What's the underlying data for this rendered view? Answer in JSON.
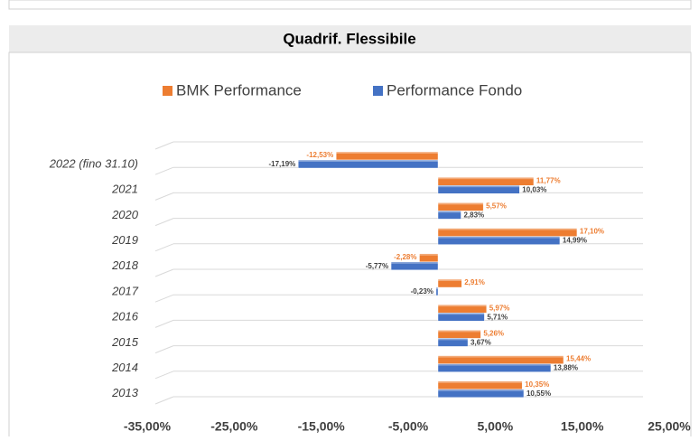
{
  "chart_data": {
    "type": "bar",
    "orientation": "horizontal",
    "title": "Quadrif. Flessibile",
    "categories": [
      "2022 (fino 31.10)",
      "2021",
      "2020",
      "2019",
      "2018",
      "2017",
      "2016",
      "2015",
      "2014",
      "2013"
    ],
    "series": [
      {
        "name": "BMK Performance",
        "color": "#ed7d31",
        "values": [
          -12.53,
          11.77,
          5.57,
          17.1,
          -2.28,
          2.91,
          5.97,
          5.26,
          15.44,
          10.35
        ],
        "value_labels": [
          "-12,53%",
          "11,77%",
          "5,57%",
          "17,10%",
          "-2,28%",
          "2,91%",
          "5,97%",
          "5,26%",
          "15,44%",
          "10,35%"
        ]
      },
      {
        "name": "Performance Fondo",
        "color": "#4472c4",
        "values": [
          -17.19,
          10.03,
          2.83,
          14.99,
          -5.77,
          -0.23,
          5.71,
          3.67,
          13.88,
          10.55
        ],
        "value_labels": [
          "-17,19%",
          "10,03%",
          "2,83%",
          "14,99%",
          "-5,77%",
          "-0,23%",
          "5,71%",
          "3,67%",
          "13,88%",
          "10,55%"
        ]
      }
    ],
    "xlim": [
      -35,
      25
    ],
    "xticks": [
      {
        "value": -35,
        "label": "-35,00%"
      },
      {
        "value": -25,
        "label": "-25,00%"
      },
      {
        "value": -15,
        "label": "-15,00%"
      },
      {
        "value": -5,
        "label": "-5,00%"
      },
      {
        "value": 5,
        "label": "5,00%"
      },
      {
        "value": 15,
        "label": "15,00%"
      },
      {
        "value": 25,
        "label": "25,00%"
      }
    ],
    "grid": true,
    "legend": "top"
  }
}
